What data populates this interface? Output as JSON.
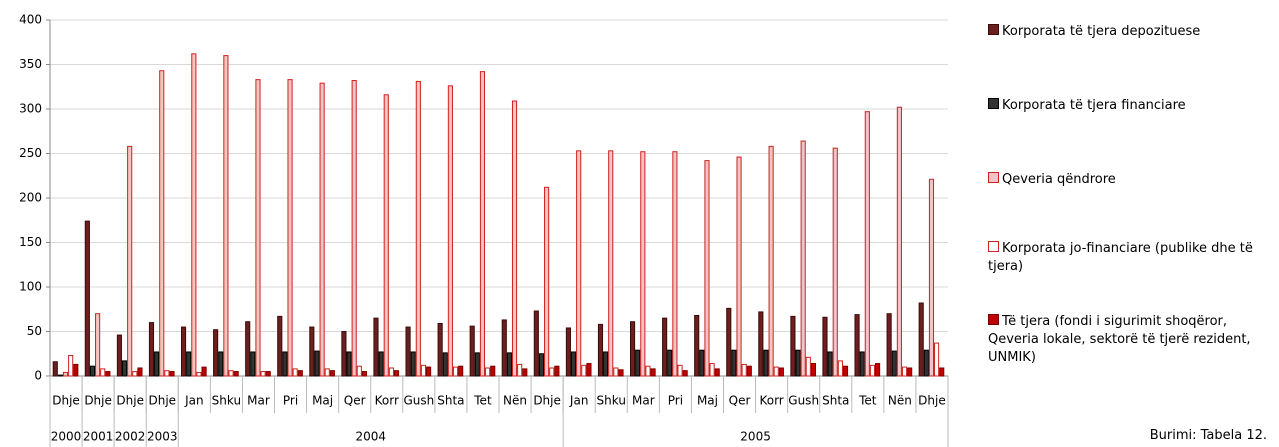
{
  "chart_data": {
    "type": "bar",
    "categories": [
      "Dhje",
      "Dhje",
      "Dhje",
      "Dhje",
      "Jan",
      "Shku",
      "Mar",
      "Pri",
      "Maj",
      "Qer",
      "Korr",
      "Gush",
      "Shta",
      "Tet",
      "Nën",
      "Dhje",
      "Jan",
      "Shku",
      "Mar",
      "Pri",
      "Maj",
      "Qer",
      "Korr",
      "Gush",
      "Shta",
      "Tet",
      "Nën",
      "Dhje"
    ],
    "category_years": [
      "2000",
      "2001",
      "2002",
      "2003",
      "2004",
      "2004",
      "2004",
      "2004",
      "2004",
      "2004",
      "2004",
      "2004",
      "2004",
      "2004",
      "2004",
      "2004",
      "2005",
      "2005",
      "2005",
      "2005",
      "2005",
      "2005",
      "2005",
      "2005",
      "2005",
      "2005",
      "2005",
      "2005"
    ],
    "series": [
      {
        "name": "Korporata të tjera depozituese",
        "color": "#6b1f1f",
        "stroke": "#3a0a0a",
        "values": [
          16,
          174,
          46,
          60,
          55,
          52,
          61,
          67,
          55,
          50,
          65,
          55,
          59,
          56,
          63,
          73,
          54,
          58,
          61,
          65,
          68,
          76,
          72,
          67,
          66,
          69,
          70,
          82
        ]
      },
      {
        "name": "Korporata të tjera financiare",
        "color": "#333333",
        "stroke": "#000000",
        "values": [
          1,
          11,
          17,
          27,
          27,
          27,
          27,
          27,
          28,
          27,
          27,
          27,
          26,
          26,
          26,
          25,
          27,
          27,
          29,
          29,
          29,
          29,
          29,
          29,
          27,
          27,
          28,
          29
        ]
      },
      {
        "name": "Qeveria qëndrore",
        "color": "#f4c4c4",
        "stroke": "#cc2222",
        "values": [
          4,
          70,
          258,
          343,
          362,
          360,
          333,
          333,
          329,
          332,
          316,
          331,
          326,
          342,
          309,
          212,
          253,
          253,
          252,
          252,
          242,
          246,
          258,
          264,
          256,
          297,
          302,
          221
        ]
      },
      {
        "name": "Korporata jo-financiare (publike dhe të tjera)",
        "color": "#ffffff",
        "stroke": "#cc2222",
        "values": [
          23,
          8,
          5,
          6,
          4,
          6,
          5,
          8,
          8,
          11,
          9,
          12,
          10,
          9,
          13,
          9,
          12,
          9,
          11,
          12,
          14,
          13,
          10,
          21,
          17,
          12,
          10,
          37
        ]
      },
      {
        "name": "Të tjera (fondi i sigurimit shoqëror, Qeveria lokale, sektorë të tjerë rezident, UNMIK)",
        "color": "#c00000",
        "stroke": "#7a0000",
        "values": [
          13,
          5,
          9,
          5,
          10,
          5,
          5,
          6,
          6,
          5,
          6,
          10,
          11,
          11,
          8,
          11,
          14,
          7,
          8,
          6,
          8,
          11,
          9,
          14,
          11,
          14,
          9,
          9
        ]
      }
    ],
    "ylim": [
      0,
      400
    ],
    "yticks": [
      0,
      50,
      100,
      150,
      200,
      250,
      300,
      350,
      400
    ],
    "grid": true,
    "source": "Burimi: Tabela 12."
  }
}
